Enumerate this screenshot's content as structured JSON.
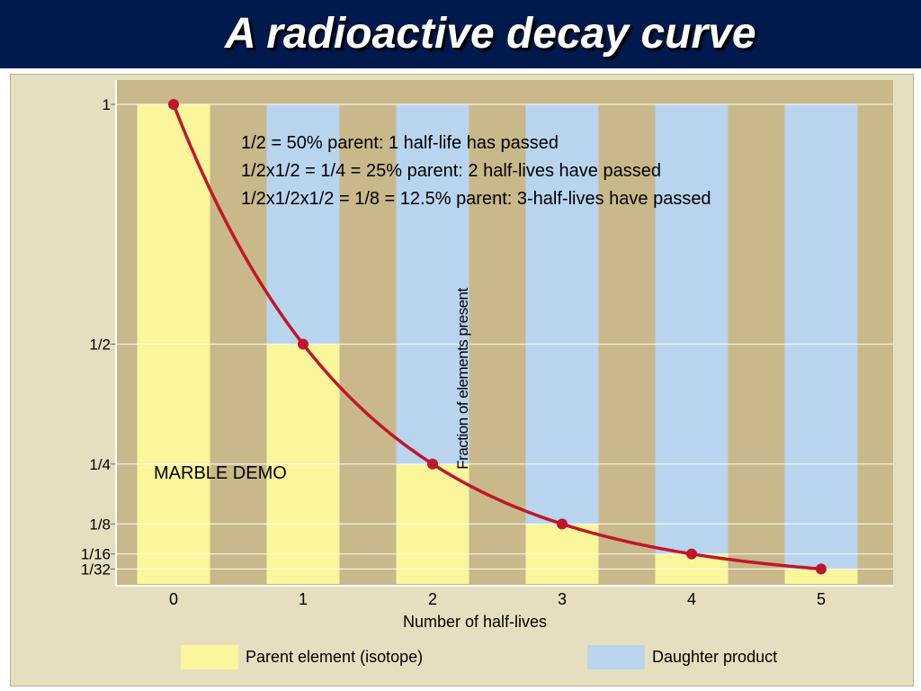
{
  "header": {
    "title": "A radioactive decay curve"
  },
  "annotations": {
    "lines": [
      "1/2 = 50% parent: 1 half-life has passed",
      "1/2x1/2 = 1/4 = 25% parent: 2 half-lives have passed",
      "1/2x1/2x1/2 = 1/8 = 12.5% parent: 3-half-lives have passed"
    ],
    "marble_demo": "MARBLE DEMO"
  },
  "legend": {
    "parent_label": "Parent element (isotope)",
    "daughter_label": "Daughter product"
  },
  "colors": {
    "title_bar": "#001a4e",
    "panel": "#e6dfbf",
    "gap_band": "#c8b88a",
    "parent": "#fbf59b",
    "daughter": "#b9d4ee",
    "curve": "#c0162c"
  },
  "chart_data": {
    "type": "bar",
    "xlabel": "Number of half-lives",
    "ylabel": "Fraction of elements present",
    "categories": [
      "0",
      "1",
      "2",
      "3",
      "4",
      "5"
    ],
    "y_ticks": [
      {
        "value": 1,
        "label": "1"
      },
      {
        "value": 0.5,
        "label": "1/2"
      },
      {
        "value": 0.25,
        "label": "1/4"
      },
      {
        "value": 0.125,
        "label": "1/8"
      },
      {
        "value": 0.0625,
        "label": "1/16"
      },
      {
        "value": 0.03125,
        "label": "1/32"
      }
    ],
    "ylim": [
      0,
      1
    ],
    "series": [
      {
        "name": "Parent element (isotope)",
        "values": [
          1,
          0.5,
          0.25,
          0.125,
          0.0625,
          0.03125
        ]
      },
      {
        "name": "Daughter product",
        "values": [
          0,
          0.5,
          0.75,
          0.875,
          0.9375,
          0.96875
        ]
      }
    ],
    "curve": {
      "x": [
        0,
        1,
        2,
        3,
        4,
        5
      ],
      "y": [
        1,
        0.5,
        0.25,
        0.125,
        0.0625,
        0.03125
      ]
    },
    "stacked": true,
    "grid": true,
    "legend_position": "bottom"
  }
}
